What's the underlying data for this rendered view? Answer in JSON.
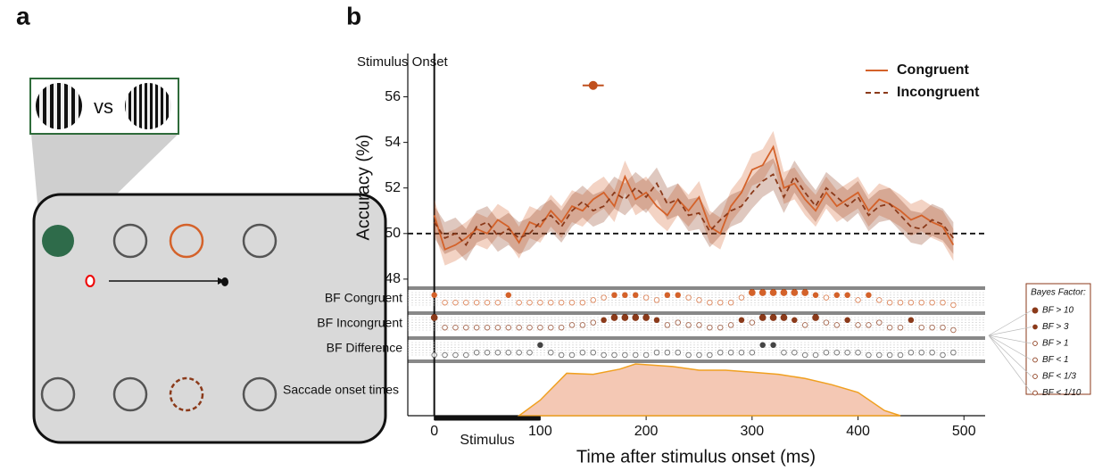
{
  "panel_a": {
    "label": "a",
    "vs": "vs"
  },
  "chart_data": {
    "type": "line",
    "panel_label": "b",
    "onset_label": "Stimulus Onset",
    "ylabel": "Accuracy (%)",
    "xlabel": "Time after stimulus onset (ms)",
    "xlim": [
      -25,
      520
    ],
    "ylim": [
      47.8,
      57.9
    ],
    "xticks": [
      0,
      100,
      200,
      300,
      400,
      500
    ],
    "yticks": [
      48,
      50,
      52,
      54,
      56
    ],
    "chance": 50,
    "legend": "upper right",
    "x": [
      0,
      10,
      20,
      30,
      40,
      50,
      60,
      70,
      80,
      90,
      100,
      110,
      120,
      130,
      140,
      150,
      160,
      170,
      180,
      190,
      200,
      210,
      220,
      230,
      240,
      250,
      260,
      270,
      280,
      290,
      300,
      310,
      320,
      330,
      340,
      350,
      360,
      370,
      380,
      390,
      400,
      410,
      420,
      430,
      440,
      450,
      460,
      470,
      480,
      490
    ],
    "series": [
      {
        "name": "Congruent",
        "color": "#d4622a",
        "dash": false,
        "error": 0.7,
        "values": [
          50.8,
          49.3,
          49.5,
          49.8,
          50.2,
          50.0,
          50.6,
          50.3,
          49.6,
          50.5,
          50.3,
          51.0,
          50.5,
          51.2,
          51.0,
          51.5,
          51.8,
          51.2,
          52.5,
          51.5,
          51.8,
          51.2,
          50.8,
          51.5,
          51.0,
          51.6,
          50.3,
          50.0,
          51.2,
          51.8,
          52.8,
          53.0,
          53.8,
          52.0,
          52.2,
          51.5,
          51.0,
          51.8,
          51.2,
          51.5,
          51.8,
          51.0,
          51.5,
          51.3,
          51.0,
          50.6,
          50.8,
          50.5,
          50.3,
          49.5
        ]
      },
      {
        "name": "Incongruent",
        "color": "#8b3a1a",
        "dash": true,
        "error": 0.7,
        "values": [
          50.5,
          49.8,
          50.0,
          49.5,
          50.3,
          50.5,
          49.9,
          50.2,
          49.8,
          50.0,
          50.5,
          50.8,
          50.3,
          51.0,
          51.4,
          51.0,
          51.2,
          51.8,
          51.5,
          52.0,
          51.6,
          52.2,
          51.3,
          51.5,
          50.8,
          50.9,
          50.1,
          50.6,
          51.0,
          51.2,
          51.8,
          52.3,
          52.6,
          51.6,
          52.5,
          51.8,
          51.2,
          52.0,
          51.6,
          51.2,
          51.6,
          50.8,
          51.2,
          51.3,
          50.8,
          50.3,
          50.2,
          50.6,
          50.4,
          49.8
        ]
      }
    ],
    "onset_marker": {
      "x": 150,
      "xerr": 10,
      "y": 56.5,
      "color": "#c0501e"
    },
    "bf_title": "Bayes Factor:",
    "bf_legend": [
      "BF > 10",
      "BF > 3",
      "BF > 1",
      "BF < 1",
      "BF < 1/3",
      "BF < 1/10"
    ],
    "bf_rows": [
      {
        "name": "BF Congruent",
        "color": "#d4622a",
        "levels": [
          1,
          4,
          4,
          4,
          4,
          4,
          4,
          1,
          4,
          4,
          4,
          4,
          4,
          4,
          4,
          3,
          2,
          1,
          1,
          1,
          2,
          3,
          1,
          1,
          2,
          3,
          4,
          4,
          4,
          2,
          0,
          0,
          0,
          0,
          0,
          0,
          1,
          2,
          1,
          1,
          3,
          1,
          3,
          4,
          4,
          4,
          4,
          4,
          4,
          5
        ]
      },
      {
        "name": "BF Incongruent",
        "color": "#8b3a1a",
        "levels": [
          0,
          4,
          4,
          4,
          4,
          4,
          4,
          4,
          4,
          4,
          4,
          4,
          4,
          3,
          3,
          2,
          1,
          0,
          0,
          0,
          0,
          1,
          3,
          2,
          3,
          3,
          4,
          4,
          3,
          1,
          2,
          0,
          0,
          0,
          1,
          3,
          0,
          2,
          3,
          1,
          3,
          3,
          2,
          4,
          4,
          1,
          4,
          4,
          4,
          5
        ]
      },
      {
        "name": "BF Difference",
        "color": "#444444",
        "levels": [
          5,
          5,
          5,
          5,
          4,
          4,
          4,
          4,
          4,
          4,
          1,
          4,
          5,
          5,
          4,
          4,
          5,
          5,
          5,
          5,
          5,
          4,
          4,
          4,
          5,
          5,
          5,
          4,
          4,
          4,
          4,
          1,
          1,
          4,
          4,
          5,
          5,
          4,
          4,
          4,
          4,
          5,
          5,
          5,
          5,
          4,
          4,
          4,
          5,
          4
        ]
      }
    ],
    "saccade": {
      "name": "Saccade onset times",
      "color": "#f0a020",
      "fill": "#f4c8b4",
      "x": [
        80,
        100,
        125,
        150,
        175,
        190,
        225,
        250,
        275,
        300,
        325,
        350,
        375,
        400,
        425,
        440
      ],
      "values": [
        0,
        0.3,
        0.82,
        0.8,
        0.9,
        1.0,
        0.95,
        0.88,
        0.88,
        0.84,
        0.8,
        0.72,
        0.6,
        0.45,
        0.1,
        0
      ]
    },
    "stimulus": {
      "label": "Stimulus",
      "start": 0,
      "end": 100
    }
  }
}
